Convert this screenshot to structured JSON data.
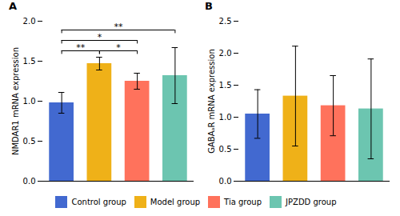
{
  "chart_data": [
    {
      "type": "bar",
      "title": "A",
      "ylabel": "NMDAR1 mRNA expression",
      "categories": [
        "Control group",
        "Model group",
        "Tia group",
        "JPZDD group"
      ],
      "values": [
        0.98,
        1.47,
        1.25,
        1.32
      ],
      "errors": [
        0.13,
        0.08,
        0.1,
        0.35
      ],
      "ylim": [
        0.0,
        2.0
      ],
      "yticks": [
        {
          "value": 0.0,
          "label": "0.0"
        },
        {
          "value": 0.5,
          "label": "0.5"
        },
        {
          "value": 1.0,
          "label": "1.0"
        },
        {
          "value": 1.5,
          "label": "1.5"
        },
        {
          "value": 2.0,
          "label": "2.0"
        }
      ],
      "tick_labels": "y",
      "legend": "bottom",
      "significance": [
        {
          "from": "Control group",
          "to": "Model group",
          "label": "**",
          "height": 1.63
        },
        {
          "from": "Model group",
          "to": "Tia group",
          "label": "*",
          "height": 1.63
        },
        {
          "from": "Control group",
          "to": "Tia group",
          "label": "*",
          "height": 1.76
        },
        {
          "from": "Control group",
          "to": "JPZDD group",
          "label": "**",
          "height": 1.89
        }
      ]
    },
    {
      "type": "bar",
      "title": "B",
      "ylabel": "GABAₐR mRNA expression",
      "categories": [
        "Control group",
        "Model group",
        "Tia group",
        "JPZDD group"
      ],
      "values": [
        1.05,
        1.33,
        1.18,
        1.13
      ],
      "errors": [
        0.38,
        0.78,
        0.47,
        0.78
      ],
      "ylim": [
        0.0,
        2.5
      ],
      "yticks": [
        {
          "value": 0.0,
          "label": "0.0"
        },
        {
          "value": 0.5,
          "label": "0.5"
        },
        {
          "value": 1.0,
          "label": "1.0"
        },
        {
          "value": 1.5,
          "label": "1.5"
        },
        {
          "value": 2.0,
          "label": "2.0"
        },
        {
          "value": 2.5,
          "label": "2.5"
        }
      ],
      "tick_labels": "y",
      "legend": "bottom"
    }
  ]
}
